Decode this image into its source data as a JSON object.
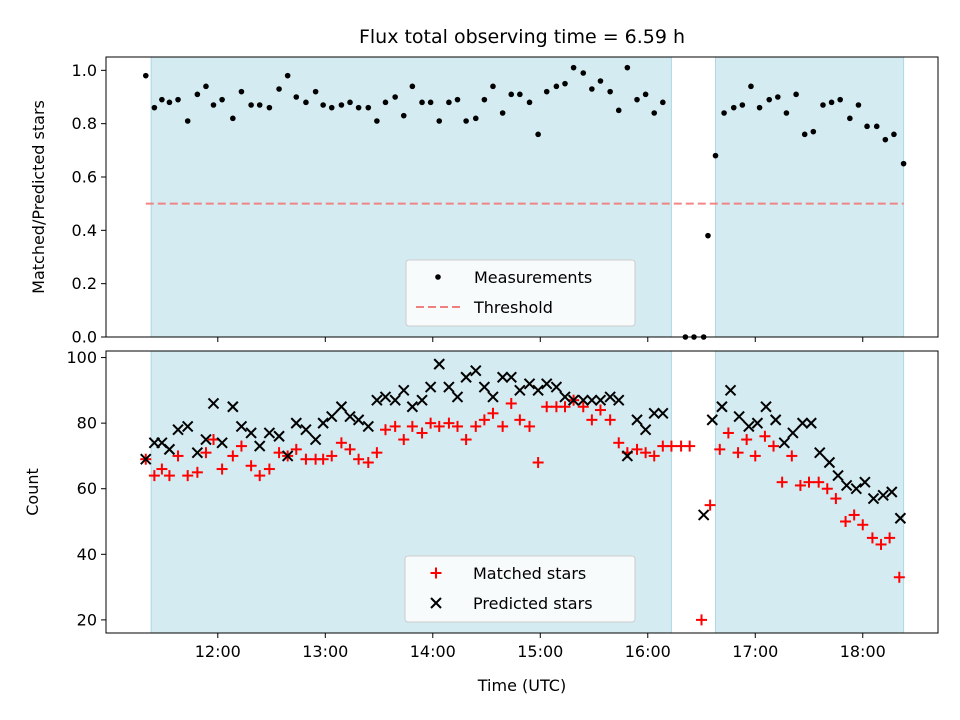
{
  "chart_data": {
    "title": "Flux total observing time = 6.59 h",
    "xlabel": "Time (UTC)",
    "x_range_hours": [
      10.96,
      18.7
    ],
    "x_ticks": [
      {
        "value": 12,
        "label": "12:00"
      },
      {
        "value": 13,
        "label": "13:00"
      },
      {
        "value": 14,
        "label": "14:00"
      },
      {
        "value": 15,
        "label": "15:00"
      },
      {
        "value": 16,
        "label": "16:00"
      },
      {
        "value": 17,
        "label": "17:00"
      },
      {
        "value": 18,
        "label": "18:00"
      }
    ],
    "highlight_spans": [
      {
        "start": 11.38,
        "end": 16.22,
        "color": "#d4ebf1"
      },
      {
        "start": 16.63,
        "end": 18.38,
        "color": "#d4ebf1"
      }
    ],
    "top_panel": {
      "type": "scatter",
      "ylabel": "Matched/Predicted stars",
      "ylim": [
        0,
        1.05
      ],
      "y_ticks": [
        {
          "value": 0.0,
          "label": "0.0"
        },
        {
          "value": 0.2,
          "label": "0.2"
        },
        {
          "value": 0.4,
          "label": "0.4"
        },
        {
          "value": 0.6,
          "label": "0.6"
        },
        {
          "value": 0.8,
          "label": "0.8"
        },
        {
          "value": 1.0,
          "label": "1.0"
        }
      ],
      "threshold": {
        "value": 0.5,
        "color": "#f08080",
        "label": "Threshold"
      },
      "measurements": {
        "label": "Measurements",
        "color": "#000000",
        "points": [
          [
            11.33,
            0.98
          ],
          [
            11.41,
            0.86
          ],
          [
            11.48,
            0.89
          ],
          [
            11.55,
            0.88
          ],
          [
            11.63,
            0.89
          ],
          [
            11.72,
            0.81
          ],
          [
            11.81,
            0.91
          ],
          [
            11.89,
            0.94
          ],
          [
            11.96,
            0.87
          ],
          [
            12.04,
            0.89
          ],
          [
            12.14,
            0.82
          ],
          [
            12.22,
            0.92
          ],
          [
            12.31,
            0.87
          ],
          [
            12.39,
            0.87
          ],
          [
            12.48,
            0.86
          ],
          [
            12.57,
            0.93
          ],
          [
            12.65,
            0.98
          ],
          [
            12.73,
            0.9
          ],
          [
            12.82,
            0.88
          ],
          [
            12.91,
            0.92
          ],
          [
            12.98,
            0.87
          ],
          [
            13.06,
            0.86
          ],
          [
            13.15,
            0.87
          ],
          [
            13.23,
            0.88
          ],
          [
            13.31,
            0.86
          ],
          [
            13.4,
            0.86
          ],
          [
            13.48,
            0.81
          ],
          [
            13.56,
            0.88
          ],
          [
            13.65,
            0.9
          ],
          [
            13.73,
            0.83
          ],
          [
            13.81,
            0.94
          ],
          [
            13.9,
            0.88
          ],
          [
            13.98,
            0.88
          ],
          [
            14.06,
            0.81
          ],
          [
            14.15,
            0.88
          ],
          [
            14.23,
            0.89
          ],
          [
            14.31,
            0.81
          ],
          [
            14.4,
            0.82
          ],
          [
            14.48,
            0.89
          ],
          [
            14.56,
            0.94
          ],
          [
            14.65,
            0.84
          ],
          [
            14.73,
            0.91
          ],
          [
            14.81,
            0.91
          ],
          [
            14.9,
            0.88
          ],
          [
            14.98,
            0.76
          ],
          [
            15.06,
            0.92
          ],
          [
            15.15,
            0.94
          ],
          [
            15.23,
            0.95
          ],
          [
            15.31,
            1.01
          ],
          [
            15.4,
            0.99
          ],
          [
            15.48,
            0.93
          ],
          [
            15.56,
            0.96
          ],
          [
            15.65,
            0.92
          ],
          [
            15.73,
            0.85
          ],
          [
            15.81,
            1.01
          ],
          [
            15.9,
            0.89
          ],
          [
            15.98,
            0.91
          ],
          [
            16.06,
            0.84
          ],
          [
            16.14,
            0.88
          ],
          [
            16.35,
            0.0
          ],
          [
            16.43,
            0.0
          ],
          [
            16.52,
            0.0
          ],
          [
            16.56,
            0.38
          ],
          [
            16.63,
            0.68
          ],
          [
            16.71,
            0.84
          ],
          [
            16.8,
            0.86
          ],
          [
            16.88,
            0.87
          ],
          [
            16.96,
            0.94
          ],
          [
            17.04,
            0.86
          ],
          [
            17.13,
            0.89
          ],
          [
            17.21,
            0.9
          ],
          [
            17.29,
            0.84
          ],
          [
            17.38,
            0.91
          ],
          [
            17.46,
            0.76
          ],
          [
            17.54,
            0.77
          ],
          [
            17.63,
            0.87
          ],
          [
            17.71,
            0.88
          ],
          [
            17.79,
            0.89
          ],
          [
            17.88,
            0.82
          ],
          [
            17.96,
            0.87
          ],
          [
            18.04,
            0.79
          ],
          [
            18.13,
            0.79
          ],
          [
            18.21,
            0.74
          ],
          [
            18.29,
            0.76
          ],
          [
            18.38,
            0.65
          ]
        ]
      },
      "legend": {
        "position": "lower-center"
      }
    },
    "bottom_panel": {
      "type": "scatter",
      "ylabel": "Count",
      "ylim": [
        16,
        102
      ],
      "y_ticks": [
        {
          "value": 20,
          "label": "20"
        },
        {
          "value": 40,
          "label": "40"
        },
        {
          "value": 60,
          "label": "60"
        },
        {
          "value": 80,
          "label": "80"
        },
        {
          "value": 100,
          "label": "100"
        }
      ],
      "series": [
        {
          "name": "Matched stars",
          "marker": "plus",
          "color": "#ff0000",
          "points": [
            [
              11.33,
              69
            ],
            [
              11.41,
              64
            ],
            [
              11.48,
              66
            ],
            [
              11.55,
              64
            ],
            [
              11.63,
              70
            ],
            [
              11.72,
              64
            ],
            [
              11.81,
              65
            ],
            [
              11.89,
              71
            ],
            [
              11.96,
              75
            ],
            [
              12.04,
              66
            ],
            [
              12.14,
              70
            ],
            [
              12.22,
              73
            ],
            [
              12.31,
              67
            ],
            [
              12.39,
              64
            ],
            [
              12.48,
              66
            ],
            [
              12.57,
              71
            ],
            [
              12.65,
              70
            ],
            [
              12.73,
              72
            ],
            [
              12.82,
              69
            ],
            [
              12.91,
              69
            ],
            [
              12.98,
              69
            ],
            [
              13.06,
              70
            ],
            [
              13.15,
              74
            ],
            [
              13.23,
              72
            ],
            [
              13.31,
              69
            ],
            [
              13.4,
              68
            ],
            [
              13.48,
              71
            ],
            [
              13.56,
              78
            ],
            [
              13.65,
              79
            ],
            [
              13.73,
              75
            ],
            [
              13.81,
              79
            ],
            [
              13.9,
              77
            ],
            [
              13.98,
              80
            ],
            [
              14.06,
              79
            ],
            [
              14.15,
              80
            ],
            [
              14.23,
              79
            ],
            [
              14.31,
              75
            ],
            [
              14.4,
              79
            ],
            [
              14.48,
              81
            ],
            [
              14.56,
              83
            ],
            [
              14.65,
              79
            ],
            [
              14.73,
              86
            ],
            [
              14.81,
              81
            ],
            [
              14.9,
              79
            ],
            [
              14.98,
              68
            ],
            [
              15.06,
              85
            ],
            [
              15.15,
              85
            ],
            [
              15.23,
              85
            ],
            [
              15.31,
              87
            ],
            [
              15.4,
              85
            ],
            [
              15.48,
              81
            ],
            [
              15.56,
              84
            ],
            [
              15.65,
              81
            ],
            [
              15.73,
              74
            ],
            [
              15.81,
              71
            ],
            [
              15.9,
              72
            ],
            [
              15.98,
              71
            ],
            [
              16.06,
              70
            ],
            [
              16.14,
              73
            ],
            [
              16.22,
              73
            ],
            [
              16.31,
              73
            ],
            [
              16.39,
              73
            ],
            [
              16.5,
              20
            ],
            [
              16.58,
              55
            ],
            [
              16.67,
              72
            ],
            [
              16.75,
              77
            ],
            [
              16.84,
              71
            ],
            [
              16.92,
              75
            ],
            [
              17.0,
              70
            ],
            [
              17.09,
              76
            ],
            [
              17.17,
              73
            ],
            [
              17.25,
              62
            ],
            [
              17.34,
              70
            ],
            [
              17.42,
              61
            ],
            [
              17.5,
              62
            ],
            [
              17.59,
              62
            ],
            [
              17.67,
              60
            ],
            [
              17.75,
              57
            ],
            [
              17.84,
              50
            ],
            [
              17.92,
              52
            ],
            [
              18.0,
              49
            ],
            [
              18.09,
              45
            ],
            [
              18.17,
              43
            ],
            [
              18.25,
              45
            ],
            [
              18.34,
              33
            ]
          ]
        },
        {
          "name": "Predicted stars",
          "marker": "x",
          "color": "#000000",
          "points": [
            [
              11.33,
              69
            ],
            [
              11.41,
              74
            ],
            [
              11.48,
              74
            ],
            [
              11.55,
              72
            ],
            [
              11.63,
              78
            ],
            [
              11.72,
              79
            ],
            [
              11.81,
              71
            ],
            [
              11.89,
              75
            ],
            [
              11.96,
              86
            ],
            [
              12.04,
              74
            ],
            [
              12.14,
              85
            ],
            [
              12.22,
              79
            ],
            [
              12.31,
              77
            ],
            [
              12.39,
              73
            ],
            [
              12.48,
              77
            ],
            [
              12.57,
              76
            ],
            [
              12.65,
              70
            ],
            [
              12.73,
              80
            ],
            [
              12.82,
              78
            ],
            [
              12.91,
              75
            ],
            [
              12.98,
              80
            ],
            [
              13.06,
              82
            ],
            [
              13.15,
              85
            ],
            [
              13.23,
              82
            ],
            [
              13.31,
              81
            ],
            [
              13.4,
              79
            ],
            [
              13.48,
              87
            ],
            [
              13.56,
              88
            ],
            [
              13.65,
              87
            ],
            [
              13.73,
              90
            ],
            [
              13.81,
              85
            ],
            [
              13.9,
              87
            ],
            [
              13.98,
              91
            ],
            [
              14.06,
              98
            ],
            [
              14.15,
              91
            ],
            [
              14.23,
              88
            ],
            [
              14.31,
              94
            ],
            [
              14.4,
              96
            ],
            [
              14.48,
              91
            ],
            [
              14.56,
              88
            ],
            [
              14.65,
              94
            ],
            [
              14.73,
              94
            ],
            [
              14.81,
              90
            ],
            [
              14.9,
              92
            ],
            [
              14.98,
              90
            ],
            [
              15.06,
              92
            ],
            [
              15.15,
              91
            ],
            [
              15.23,
              88
            ],
            [
              15.31,
              87
            ],
            [
              15.4,
              87
            ],
            [
              15.48,
              87
            ],
            [
              15.56,
              87
            ],
            [
              15.65,
              88
            ],
            [
              15.73,
              87
            ],
            [
              15.81,
              70
            ],
            [
              15.9,
              81
            ],
            [
              15.98,
              78
            ],
            [
              16.06,
              83
            ],
            [
              16.14,
              83
            ],
            [
              16.52,
              52
            ],
            [
              16.6,
              81
            ],
            [
              16.69,
              85
            ],
            [
              16.77,
              90
            ],
            [
              16.85,
              82
            ],
            [
              16.94,
              79
            ],
            [
              17.02,
              80
            ],
            [
              17.1,
              85
            ],
            [
              17.19,
              81
            ],
            [
              17.27,
              74
            ],
            [
              17.35,
              77
            ],
            [
              17.44,
              80
            ],
            [
              17.52,
              80
            ],
            [
              17.6,
              71
            ],
            [
              17.69,
              68
            ],
            [
              17.77,
              64
            ],
            [
              17.85,
              61
            ],
            [
              17.94,
              60
            ],
            [
              18.02,
              62
            ],
            [
              18.1,
              57
            ],
            [
              18.19,
              58
            ],
            [
              18.27,
              59
            ],
            [
              18.35,
              51
            ]
          ]
        }
      ],
      "legend": {
        "position": "lower-center"
      }
    }
  }
}
